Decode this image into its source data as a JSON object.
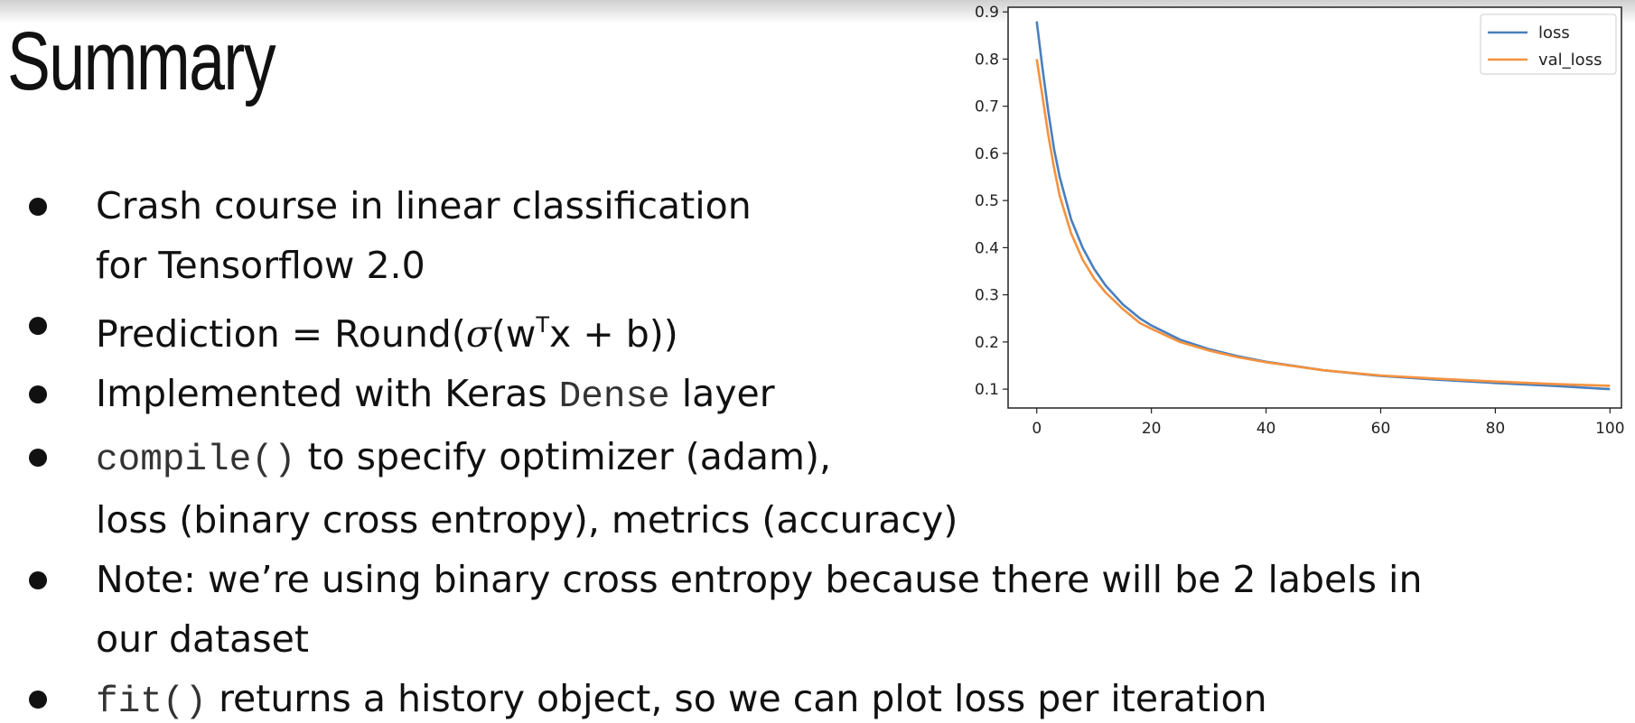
{
  "slide": {
    "title": "Summary",
    "bullets": [
      {
        "lines": [
          "Crash course in linear classification",
          "for Tensorflow 2.0"
        ]
      },
      {
        "pre": "Prediction = Round(",
        "sigma": "σ",
        "mid": "(w",
        "sup": "T",
        "post": "x + b))"
      },
      {
        "pre": "Implemented with Keras ",
        "code": "Dense",
        "post": " layer"
      },
      {
        "code": "compile()",
        "post1": " to specify optimizer (adam),",
        "line2": "loss (binary cross entropy), metrics (accuracy)"
      },
      {
        "lines": [
          "Note: we’re using binary cross entropy because there will be 2 labels in",
          "our dataset"
        ]
      },
      {
        "code": "fit()",
        "post": " returns a history object, so we can plot loss per iteration"
      }
    ]
  },
  "chart_data": {
    "type": "line",
    "xlim": [
      -5,
      102
    ],
    "ylim": [
      0.06,
      0.91
    ],
    "xticks": [
      0,
      20,
      40,
      60,
      80,
      100
    ],
    "yticks": [
      0.1,
      0.2,
      0.3,
      0.4,
      0.5,
      0.6,
      0.7,
      0.8,
      0.9
    ],
    "x": [
      0,
      1,
      2,
      3,
      4,
      6,
      8,
      10,
      12,
      15,
      18,
      20,
      25,
      30,
      35,
      40,
      50,
      60,
      70,
      80,
      90,
      100
    ],
    "series": [
      {
        "name": "loss",
        "color": "#4a7fbd",
        "values": [
          0.88,
          0.78,
          0.69,
          0.61,
          0.55,
          0.46,
          0.4,
          0.355,
          0.32,
          0.28,
          0.25,
          0.235,
          0.205,
          0.185,
          0.17,
          0.158,
          0.14,
          0.128,
          0.12,
          0.113,
          0.107,
          0.1
        ]
      },
      {
        "name": "val_loss",
        "color": "#f5923e",
        "values": [
          0.8,
          0.72,
          0.64,
          0.57,
          0.51,
          0.43,
          0.375,
          0.335,
          0.305,
          0.27,
          0.24,
          0.228,
          0.2,
          0.182,
          0.168,
          0.157,
          0.14,
          0.129,
          0.122,
          0.116,
          0.111,
          0.107
        ]
      }
    ],
    "legend": "top-right",
    "grid": false
  }
}
